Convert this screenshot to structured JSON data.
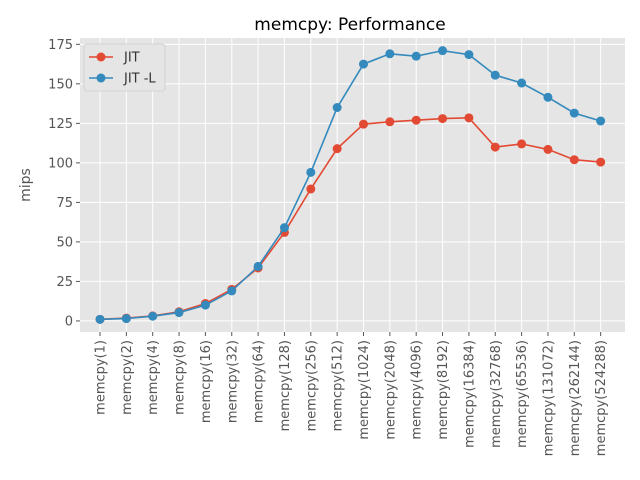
{
  "chart_data": {
    "type": "line",
    "title": "memcpy: Performance",
    "xlabel": "",
    "ylabel": "mips",
    "ylim": [
      -7,
      179
    ],
    "yticks": [
      0,
      25,
      50,
      75,
      100,
      125,
      150,
      175
    ],
    "categories": [
      "memcpy(1)",
      "memcpy(2)",
      "memcpy(4)",
      "memcpy(8)",
      "memcpy(16)",
      "memcpy(32)",
      "memcpy(64)",
      "memcpy(128)",
      "memcpy(256)",
      "memcpy(512)",
      "memcpy(1024)",
      "memcpy(2048)",
      "memcpy(4096)",
      "memcpy(8192)",
      "memcpy(16384)",
      "memcpy(32768)",
      "memcpy(65536)",
      "memcpy(131072)",
      "memcpy(262144)",
      "memcpy(524288)"
    ],
    "series": [
      {
        "name": "JIT",
        "color": "#E24A33",
        "values": [
          1,
          1.8,
          3.2,
          5.8,
          11,
          20,
          33.5,
          56,
          83.5,
          109,
          124.5,
          126,
          127,
          128,
          128.5,
          110,
          112,
          108.5,
          102,
          100.5
        ]
      },
      {
        "name": "JIT -L",
        "color": "#348ABD",
        "values": [
          1,
          1.5,
          3,
          5.3,
          10,
          19,
          34.5,
          59,
          94,
          135,
          162.5,
          169,
          167.5,
          171,
          168.5,
          155.5,
          150.5,
          141.5,
          131.5,
          126.5
        ]
      }
    ],
    "grid": true,
    "legend_position": "top-left",
    "background_color": "#E5E5E5",
    "grid_color": "#FFFFFF"
  }
}
